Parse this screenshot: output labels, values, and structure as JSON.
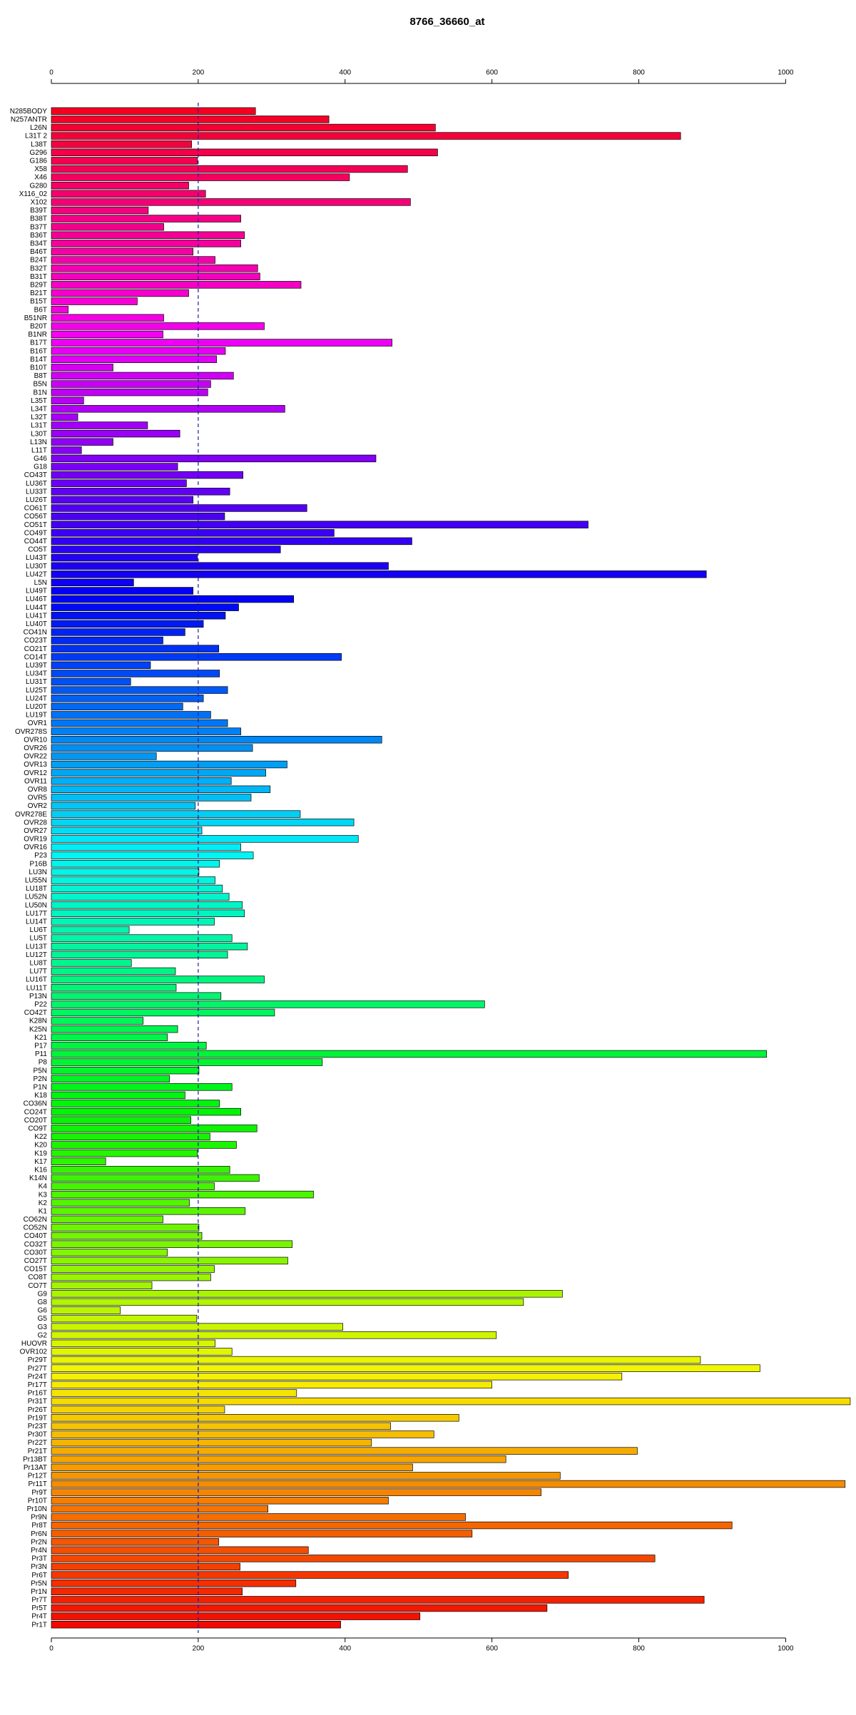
{
  "chart_data": {
    "type": "barh",
    "title": "8766_36660_at",
    "categories": [
      "N285BODY",
      "N257ANTR",
      "L26N",
      "L31T 2",
      "L38T",
      "G296",
      "G186",
      "X58",
      "X46",
      "G280",
      "X116_02",
      "X102",
      "B39T",
      "B38T",
      "B37T",
      "B36T",
      "B34T",
      "B46T",
      "B24T",
      "B32T",
      "B31T",
      "B29T",
      "B21T",
      "B15T",
      "B6T",
      "B51NR",
      "B20T",
      "B1NR",
      "B17T",
      "B16T",
      "B14T",
      "B10T",
      "B8T",
      "B5N",
      "B1N",
      "L35T",
      "L34T",
      "L32T",
      "L31T",
      "L30T",
      "L13N",
      "L11T",
      "G46",
      "G18",
      "CO43T",
      "LU36T",
      "LU33T",
      "LU26T",
      "CO61T",
      "CO56T",
      "CO51T",
      "CO49T",
      "CO44T",
      "CO5T",
      "LU43T",
      "LU30T",
      "LU42T",
      "L5N",
      "LU49T",
      "LU46T",
      "LU44T",
      "LU41T",
      "LU40T",
      "CO41N",
      "CO23T",
      "CO21T",
      "CO14T",
      "LU39T",
      "LU34T",
      "LU31T",
      "LU25T",
      "LU24T",
      "LU20T",
      "LU19T",
      "OVR1",
      "OVR278S",
      "OVR10",
      "OVR26",
      "OVR22",
      "OVR13",
      "OVR12",
      "OVR11",
      "OVR8",
      "OVR5",
      "OVR2",
      "OVR278E",
      "OVR28",
      "OVR27",
      "OVR19",
      "OVR16",
      "P23",
      "P16B",
      "LU3N",
      "LU55N",
      "LU18T",
      "LU52N",
      "LU50N",
      "LU17T",
      "LU14T",
      "LU6T",
      "LU5T",
      "LU13T",
      "LU12T",
      "LU8T",
      "LU7T",
      "LU16T",
      "LU11T",
      "P13N",
      "P22",
      "CO42T",
      "K28N",
      "K25N",
      "K21",
      "P17",
      "P11",
      "P8",
      "P5N",
      "P2N",
      "P1N",
      "K18",
      "CO36N",
      "CO24T",
      "CO20T",
      "CO9T",
      "K22",
      "K20",
      "K19",
      "K17",
      "K16",
      "K14N",
      "K4",
      "K3",
      "K2",
      "K1",
      "CO62N",
      "CO52N",
      "CO40T",
      "CO32T",
      "CO30T",
      "CO27T",
      "CO15T",
      "CO8T",
      "CO7T",
      "G9",
      "G8",
      "G6",
      "G5",
      "G3",
      "G2",
      "HUOVR",
      "OVR102",
      "Pr29T",
      "Pr27T",
      "Pr24T",
      "Pr17T",
      "Pr16T",
      "Pr31T",
      "Pr26T",
      "Pr19T",
      "Pr23T",
      "Pr30T",
      "Pr22T",
      "Pr21T",
      "Pr13BT",
      "Pr13AT",
      "Pr12T",
      "Pr11T",
      "Pr9T",
      "Pr10T",
      "Pr10N",
      "Pr9N",
      "Pr8T",
      "Pr6N",
      "Pr2N",
      "Pr4N",
      "Pr3T",
      "Pr3N",
      "Pr6T",
      "Pr5N",
      "Pr1N",
      "Pr7T",
      "Pr5T",
      "Pr4T",
      "Pr1T"
    ],
    "values": [
      278,
      378,
      523,
      857,
      191,
      526,
      199,
      485,
      406,
      187,
      210,
      489,
      132,
      258,
      153,
      263,
      258,
      193,
      223,
      281,
      284,
      340,
      187,
      117,
      23,
      153,
      290,
      152,
      464,
      237,
      225,
      84,
      248,
      217,
      213,
      44,
      318,
      36,
      131,
      175,
      84,
      41,
      442,
      172,
      261,
      184,
      243,
      193,
      348,
      236,
      731,
      385,
      491,
      312,
      199,
      459,
      892,
      112,
      193,
      330,
      255,
      237,
      207,
      182,
      152,
      228,
      395,
      135,
      229,
      108,
      240,
      207,
      179,
      217,
      240,
      258,
      450,
      274,
      143,
      321,
      292,
      245,
      298,
      272,
      196,
      339,
      412,
      205,
      418,
      258,
      275,
      229,
      201,
      223,
      233,
      242,
      260,
      263,
      222,
      106,
      246,
      267,
      240,
      109,
      169,
      290,
      170,
      231,
      590,
      304,
      125,
      172,
      158,
      211,
      974,
      369,
      201,
      161,
      246,
      182,
      229,
      258,
      190,
      280,
      216,
      252,
      199,
      74,
      243,
      283,
      222,
      357,
      188,
      264,
      152,
      201,
      205,
      328,
      158,
      322,
      222,
      217,
      137,
      696,
      643,
      94,
      198,
      397,
      606,
      223,
      246,
      884,
      965,
      777,
      600,
      334,
      1088,
      236,
      555,
      462,
      521,
      436,
      798,
      619,
      492,
      693,
      1081,
      667,
      459,
      295,
      564,
      927,
      573,
      228,
      350,
      822,
      257,
      704,
      333,
      260,
      889,
      675,
      502,
      394
    ],
    "xlim": [
      0,
      1090
    ],
    "xticks": [
      0,
      200,
      400,
      600,
      800,
      1000
    ],
    "reference_line": 200,
    "colormap": "rainbow-reversed"
  }
}
